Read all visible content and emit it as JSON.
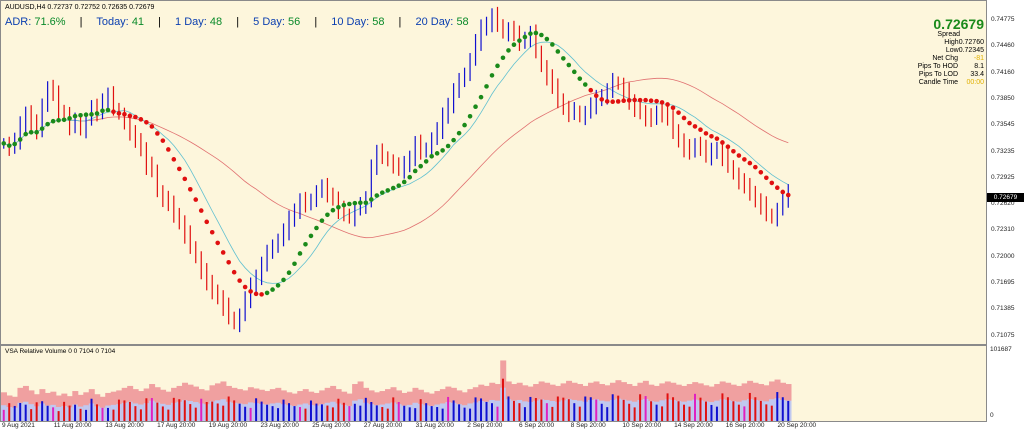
{
  "chart_title": "AUDUSD,H4  0.72737 0.72752 0.72635 0.72679",
  "adr_panel": {
    "items": [
      {
        "label": "ADR:",
        "value": "71.6%"
      },
      {
        "label": "Today:",
        "value": "41"
      },
      {
        "label": "1 Day:",
        "value": "48"
      },
      {
        "label": "5 Day:",
        "value": "56"
      },
      {
        "label": "10 Day:",
        "value": "58"
      },
      {
        "label": "20 Day:",
        "value": "58"
      }
    ]
  },
  "info_panel": {
    "current_price": "0.72679",
    "rows": [
      {
        "label": "Spread",
        "value": ""
      },
      {
        "label": "High",
        "value": "0.72760"
      },
      {
        "label": "Low",
        "value": "0.72345"
      },
      {
        "label": "Net Chg",
        "value": "-81"
      },
      {
        "label": "Pips To HOD",
        "value": "8.1"
      },
      {
        "label": "Pips To LOD",
        "value": "33.4"
      },
      {
        "label": "Candle Time",
        "value": "00:00"
      }
    ]
  },
  "price_axis": [
    "0.74775",
    "0.74460",
    "0.74160",
    "0.73850",
    "0.73545",
    "0.73235",
    "0.72925",
    "0.72620",
    "0.72310",
    "0.72000",
    "0.71695",
    "0.71385",
    "0.71075"
  ],
  "price_marker": "0.72679",
  "volume_title": "VSA Relative Volume 0 0 7104 0 7104",
  "volume_axis": {
    "top": "101687",
    "bottom": "0"
  },
  "time_axis": [
    "9 Aug 2021",
    "11 Aug 20:00",
    "13 Aug 20:00",
    "17 Aug 20:00",
    "19 Aug 20:00",
    "23 Aug 20:00",
    "25 Aug 20:00",
    "27 Aug 20:00",
    "31 Aug 20:00",
    "2 Sep 20:00",
    "6 Sep 20:00",
    "8 Sep 20:00",
    "10 Sep 20:00",
    "14 Sep 20:00",
    "16 Sep 20:00",
    "20 Sep 20:00"
  ],
  "colors": {
    "bull": "#1010d0",
    "bear": "#e01010",
    "trend_up": "#1a8a1a",
    "trend_down": "#e01010",
    "ma_slow": "#e07070",
    "ma_fast": "#60c0d0"
  },
  "chart_data": {
    "type": "candlestick",
    "title": "AUDUSD,H4",
    "ylim": [
      0.7103,
      0.7481
    ],
    "closes": [
      0.7325,
      0.732,
      0.7328,
      0.7345,
      0.736,
      0.7348,
      0.7338,
      0.737,
      0.7388,
      0.738,
      0.7362,
      0.7358,
      0.7345,
      0.735,
      0.734,
      0.7352,
      0.7365,
      0.736,
      0.7375,
      0.738,
      0.7365,
      0.7358,
      0.735,
      0.7335,
      0.733,
      0.7318,
      0.73,
      0.7295,
      0.727,
      0.7262,
      0.7255,
      0.7245,
      0.7235,
      0.7222,
      0.7208,
      0.7195,
      0.718,
      0.7165,
      0.7158,
      0.715,
      0.714,
      0.7128,
      0.712,
      0.713,
      0.7148,
      0.7162,
      0.7175,
      0.7188,
      0.72,
      0.721,
      0.7215,
      0.7225,
      0.7238,
      0.725,
      0.726,
      0.7255,
      0.7262,
      0.727,
      0.7275,
      0.7268,
      0.7262,
      0.725,
      0.7245,
      0.724,
      0.725,
      0.7255,
      0.726,
      0.73,
      0.7315,
      0.731,
      0.7305,
      0.73,
      0.7295,
      0.73,
      0.731,
      0.7325,
      0.7315,
      0.732,
      0.733,
      0.734,
      0.7355,
      0.737,
      0.7385,
      0.7395,
      0.7405,
      0.742,
      0.744,
      0.7455,
      0.7462,
      0.747,
      0.746,
      0.745,
      0.7455,
      0.7448,
      0.744,
      0.7445,
      0.745,
      0.743,
      0.7412,
      0.74,
      0.7388,
      0.7375,
      0.7365,
      0.736,
      0.7362,
      0.7355,
      0.736,
      0.7368,
      0.7375,
      0.738,
      0.7385,
      0.7395,
      0.7392,
      0.7385,
      0.737,
      0.7365,
      0.736,
      0.7355,
      0.7352,
      0.7362,
      0.7358,
      0.7352,
      0.734,
      0.7328,
      0.732,
      0.7315,
      0.7325,
      0.732,
      0.731,
      0.7315,
      0.732,
      0.731,
      0.73,
      0.729,
      0.7282,
      0.7275,
      0.727,
      0.726,
      0.7255,
      0.7245,
      0.724,
      0.725,
      0.7262,
      0.7268
    ],
    "trend_colors": "ggggggggggggggggggggrrrrrrrrrrrrrrrrrrrrrrrrrrrrgggggggggggggggggggggggggggggggggggggggggggggggggggggggggggrrrrrrrrrrrrrrrrrrrrrrrrrrrrrrrrrrrrrrrrrrrrrrrrrrrrrr",
    "volumes": [
      0.45,
      0.4,
      0.38,
      0.52,
      0.55,
      0.48,
      0.42,
      0.5,
      0.44,
      0.46,
      0.4,
      0.43,
      0.39,
      0.47,
      0.41,
      0.45,
      0.5,
      0.42,
      0.38,
      0.44,
      0.46,
      0.48,
      0.52,
      0.55,
      0.5,
      0.47,
      0.51,
      0.58,
      0.53,
      0.49,
      0.46,
      0.52,
      0.55,
      0.6,
      0.57,
      0.54,
      0.5,
      0.48,
      0.56,
      0.59,
      0.62,
      0.55,
      0.52,
      0.5,
      0.48,
      0.53,
      0.51,
      0.49,
      0.47,
      0.5,
      0.52,
      0.48,
      0.45,
      0.43,
      0.47,
      0.5,
      0.46,
      0.44,
      0.48,
      0.52,
      0.55,
      0.5,
      0.46,
      0.43,
      0.58,
      0.62,
      0.52,
      0.48,
      0.45,
      0.47,
      0.5,
      0.53,
      0.48,
      0.44,
      0.46,
      0.52,
      0.49,
      0.45,
      0.43,
      0.47,
      0.5,
      0.54,
      0.52,
      0.48,
      0.45,
      0.5,
      0.53,
      0.57,
      0.55,
      0.6,
      0.58,
      0.95,
      0.62,
      0.58,
      0.6,
      0.56,
      0.54,
      0.58,
      0.62,
      0.6,
      0.57,
      0.55,
      0.59,
      0.63,
      0.6,
      0.58,
      0.55,
      0.6,
      0.62,
      0.58,
      0.56,
      0.6,
      0.64,
      0.61,
      0.58,
      0.55,
      0.6,
      0.63,
      0.57,
      0.55,
      0.59,
      0.62,
      0.6,
      0.57,
      0.55,
      0.58,
      0.61,
      0.59,
      0.56,
      0.54,
      0.58,
      0.62,
      0.6,
      0.57,
      0.55,
      0.59,
      0.63,
      0.6,
      0.58,
      0.56,
      0.62,
      0.65,
      0.6,
      0.58
    ]
  }
}
